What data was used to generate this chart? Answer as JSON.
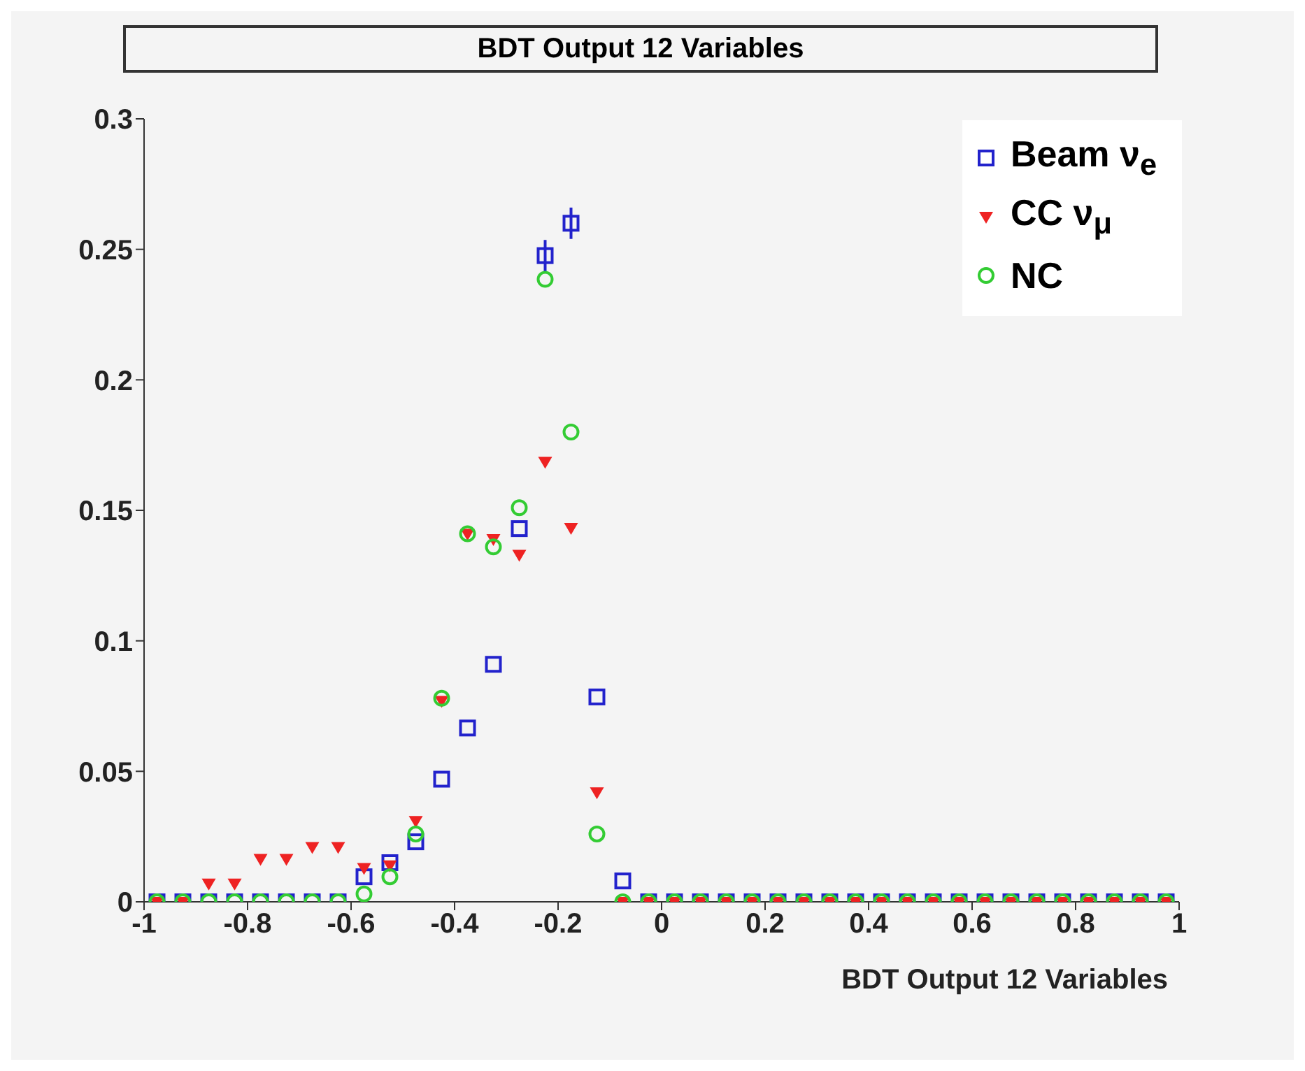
{
  "chart_data": {
    "type": "scatter",
    "title": "BDT Output 12 Variables",
    "xlabel": "BDT Output 12 Variables",
    "x": [
      -0.975,
      -0.925,
      -0.875,
      -0.825,
      -0.775,
      -0.725,
      -0.675,
      -0.625,
      -0.575,
      -0.525,
      -0.475,
      -0.425,
      -0.375,
      -0.325,
      -0.275,
      -0.225,
      -0.175,
      -0.125,
      -0.075,
      -0.025,
      0.025,
      0.075,
      0.125,
      0.175,
      0.225,
      0.275,
      0.325,
      0.375,
      0.425,
      0.475,
      0.525,
      0.575,
      0.625,
      0.675,
      0.725,
      0.775,
      0.825,
      0.875,
      0.925,
      0.975
    ],
    "series": [
      {
        "name": "Beam ν$_{e}$",
        "color": "#2222cc",
        "marker": "square",
        "values": [
          0,
          0,
          0,
          0,
          0,
          0,
          0,
          0,
          0.0096,
          0.015,
          0.023,
          0.047,
          0.0666,
          0.091,
          0.143,
          0.2476,
          0.26,
          0.0785,
          0.008,
          0,
          0,
          0,
          0,
          0,
          0,
          0,
          0,
          0,
          0,
          0,
          0,
          0,
          0,
          0,
          0,
          0,
          0,
          0,
          0,
          0
        ],
        "errors": [
          null,
          null,
          null,
          null,
          null,
          null,
          null,
          null,
          null,
          null,
          null,
          null,
          null,
          null,
          null,
          0.006,
          0.006,
          null,
          null,
          null,
          null,
          null,
          null,
          null,
          null,
          null,
          null,
          null,
          null,
          null,
          null,
          null,
          null,
          null,
          null,
          null,
          null,
          null,
          null,
          null
        ]
      },
      {
        "name": "CC ν$_{μ}$",
        "color": "#ee2222",
        "marker": "triangle",
        "values": [
          0,
          0,
          0.007,
          0.007,
          0.0165,
          0.0165,
          0.021,
          0.021,
          0.013,
          0.014,
          0.031,
          0.077,
          0.141,
          0.139,
          0.133,
          0.1686,
          0.1433,
          0.042,
          0,
          0,
          0,
          0,
          0,
          0,
          0,
          0,
          0,
          0,
          0,
          0,
          0,
          0,
          0,
          0,
          0,
          0,
          0,
          0,
          0,
          0
        ]
      },
      {
        "name": "NC",
        "color": "#33cc33",
        "marker": "circle",
        "values": [
          0,
          0,
          0,
          0,
          0,
          0,
          0,
          0,
          0.003,
          0.0096,
          0.026,
          0.078,
          0.141,
          0.136,
          0.151,
          0.2385,
          0.18,
          0.026,
          0,
          0,
          0,
          0,
          0,
          0,
          0,
          0,
          0,
          0,
          0,
          0,
          0,
          0,
          0,
          0,
          0,
          0,
          0,
          0,
          0,
          0
        ]
      }
    ],
    "xlim": [
      -1,
      1
    ],
    "xticks": [
      -1,
      -0.8,
      -0.6,
      -0.4,
      -0.2,
      0,
      0.2,
      0.4,
      0.6,
      0.8,
      1
    ],
    "ylim": [
      0,
      0.3
    ],
    "yticks": [
      0,
      0.05,
      0.1,
      0.15,
      0.2,
      0.25,
      0.3
    ],
    "legend": "top right",
    "grid": false
  }
}
